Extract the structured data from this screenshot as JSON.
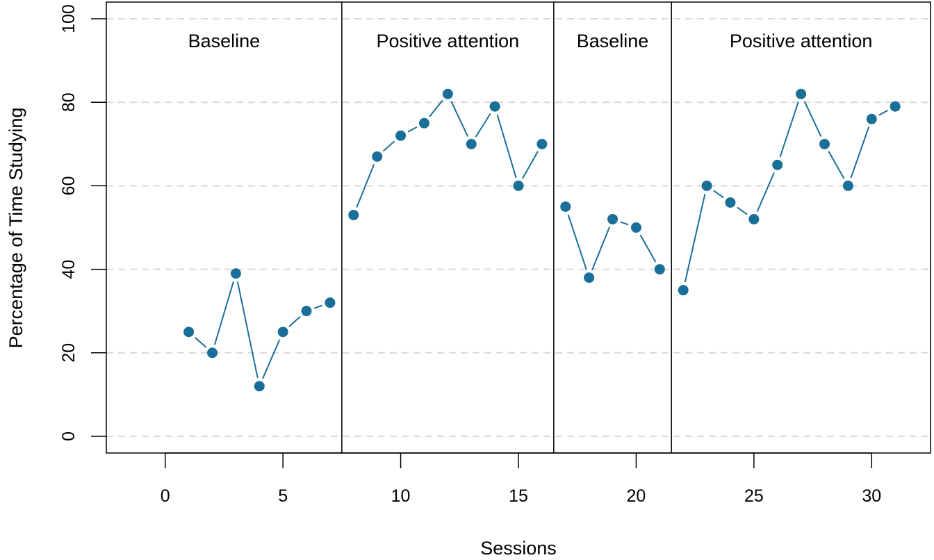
{
  "chart_data": {
    "type": "line",
    "xlabel": "Sessions",
    "ylabel": "Percentage of Time Studying",
    "xlim": [
      -2.5,
      32.5
    ],
    "ylim": [
      -4,
      104
    ],
    "x_ticks": [
      0,
      5,
      10,
      15,
      20,
      25,
      30
    ],
    "y_ticks": [
      0,
      20,
      40,
      60,
      80,
      100
    ],
    "grid": "horizontal dashed",
    "phase_boundaries": [
      7.5,
      16.5,
      21.5
    ],
    "phases": [
      {
        "label": "Baseline",
        "x_start": -2.5,
        "x_end": 7.5
      },
      {
        "label": "Positive attention",
        "x_start": 7.5,
        "x_end": 16.5
      },
      {
        "label": "Baseline",
        "x_start": 16.5,
        "x_end": 21.5
      },
      {
        "label": "Positive attention",
        "x_start": 21.5,
        "x_end": 32.5
      }
    ],
    "series": [
      {
        "color": "#1a6f99",
        "segments": [
          {
            "x": [
              1,
              2,
              3,
              4,
              5,
              6,
              7
            ],
            "y": [
              25,
              20,
              39,
              12,
              25,
              30,
              32
            ]
          },
          {
            "x": [
              8,
              9,
              10,
              11,
              12,
              13,
              14,
              15,
              16
            ],
            "y": [
              53,
              67,
              72,
              75,
              82,
              70,
              79,
              60,
              70
            ]
          },
          {
            "x": [
              17,
              18,
              19,
              20,
              21
            ],
            "y": [
              55,
              38,
              52,
              50,
              40
            ]
          },
          {
            "x": [
              22,
              23,
              24,
              25,
              26,
              27,
              28,
              29,
              30,
              31
            ],
            "y": [
              35,
              60,
              56,
              52,
              65,
              82,
              70,
              60,
              76,
              79
            ]
          }
        ]
      }
    ]
  }
}
